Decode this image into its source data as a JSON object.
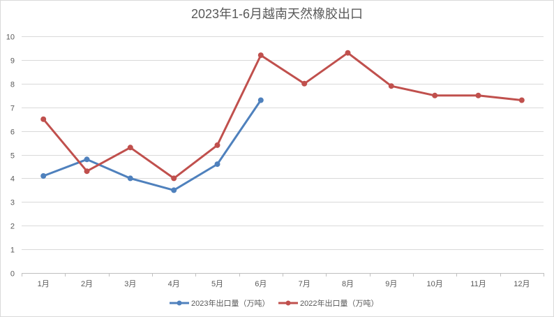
{
  "chart_data": {
    "type": "line",
    "title": "2023年1-6月越南天然橡胶出口",
    "xlabel": "",
    "ylabel": "",
    "categories": [
      "1月",
      "2月",
      "3月",
      "4月",
      "5月",
      "6月",
      "7月",
      "8月",
      "9月",
      "10月",
      "11月",
      "12月"
    ],
    "ylim": [
      0,
      10
    ],
    "yticks": [
      0,
      1,
      2,
      3,
      4,
      5,
      6,
      7,
      8,
      9,
      10
    ],
    "grid": true,
    "legend_position": "bottom",
    "series": [
      {
        "name": "2023年出口量（万吨）",
        "color": "#4f81bd",
        "values": [
          4.1,
          4.8,
          4.0,
          3.5,
          4.6,
          7.3,
          null,
          null,
          null,
          null,
          null,
          null
        ]
      },
      {
        "name": "2022年出口量（万吨）",
        "color": "#c0504d",
        "values": [
          6.5,
          4.3,
          5.3,
          4.0,
          5.4,
          9.2,
          8.0,
          9.3,
          7.9,
          7.5,
          7.5,
          7.3
        ]
      }
    ]
  }
}
